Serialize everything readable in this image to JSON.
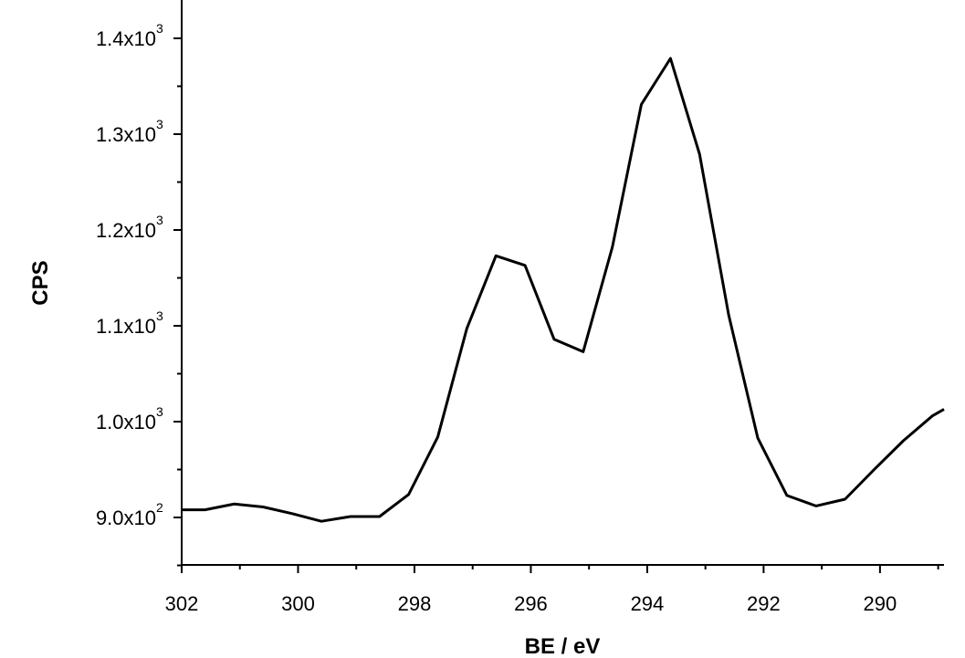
{
  "chart_data": {
    "type": "line",
    "title": "",
    "xlabel": "BE / eV",
    "ylabel": "CPS",
    "xlim": [
      302,
      288.9
    ],
    "ylim": [
      850,
      1400
    ],
    "x_reversed": true,
    "grid": false,
    "legend": "none",
    "x_ticks": [
      {
        "value": 302,
        "label": "302"
      },
      {
        "value": 300,
        "label": "300"
      },
      {
        "value": 298,
        "label": "298"
      },
      {
        "value": 296,
        "label": "296"
      },
      {
        "value": 294,
        "label": "294"
      },
      {
        "value": 292,
        "label": "292"
      },
      {
        "value": 290,
        "label": "290"
      }
    ],
    "y_ticks": [
      {
        "value": 900,
        "mant": "9.0x10",
        "exp": "2"
      },
      {
        "value": 1000,
        "mant": "1.0x10",
        "exp": "3"
      },
      {
        "value": 1100,
        "mant": "1.1x10",
        "exp": "3"
      },
      {
        "value": 1200,
        "mant": "1.2x10",
        "exp": "3"
      },
      {
        "value": 1300,
        "mant": "1.3x10",
        "exp": "3"
      },
      {
        "value": 1400,
        "mant": "1.4x10",
        "exp": "3"
      }
    ],
    "series": [
      {
        "color": "#000000",
        "x": [
          302.0,
          301.6,
          301.1,
          300.6,
          300.1,
          299.6,
          299.1,
          298.6,
          298.1,
          297.6,
          297.1,
          296.6,
          296.1,
          295.6,
          295.1,
          294.6,
          294.1,
          293.6,
          293.1,
          292.6,
          292.1,
          291.6,
          291.1,
          290.6,
          290.1,
          289.6,
          289.1,
          288.9
        ],
        "y": [
          908,
          908,
          914,
          911,
          904,
          896,
          901,
          901,
          924,
          984,
          1097,
          1173,
          1163,
          1086,
          1073,
          1182,
          1331,
          1379,
          1279,
          1111,
          983,
          923,
          912,
          919,
          950,
          980,
          1006,
          1013
        ]
      }
    ]
  }
}
